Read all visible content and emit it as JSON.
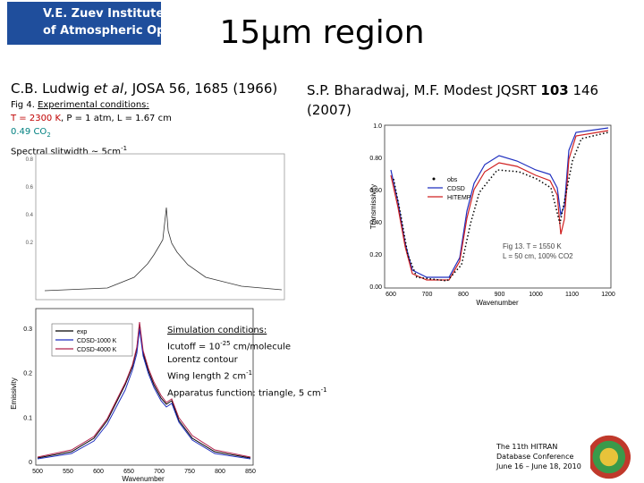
{
  "header": {
    "logo_lines": [
      "V.E. Zuev Institute",
      "of Atmospheric Optics"
    ],
    "title": "15μm region"
  },
  "left_reference": {
    "authors": "C.B. Ludwig ",
    "etal": "et al",
    "source": ", JOSA 56, 1685 (1966)",
    "fig": "Fig 4. ",
    "conditions_heading": "Experimental conditions:",
    "temperature": "T = 2300 K",
    "rest": ", P = 1 atm, L = 1.67 cm",
    "mixture": "0.49 CO",
    "mixture_sub": "2",
    "slit": "Spectral slitwidth ~ 5cm",
    "slit_sup": "-1"
  },
  "right_reference": {
    "authors": "S.P. Bharadwaj, M.F. Modest JQSRT ",
    "volume": "103",
    "pages": " 146",
    "year": "(2007)"
  },
  "simulation": {
    "heading": "Simulation conditions:",
    "cutoff": "Icutoff = 10",
    "cutoff_sup": "-25",
    "cutoff_unit": " cm/molecule",
    "contour": "Lorentz contour",
    "wing": "Wing length 2 cm",
    "wing_sup": "-1",
    "apparatus": "Apparatus function: triangle, 5 cm",
    "apparatus_sup": "-1"
  },
  "ludwig_plot": {
    "yticks": [
      "0.8",
      "0.6",
      "0.4",
      "0.2"
    ]
  },
  "transmissivity_plot": {
    "ylabel": "Transmissivity",
    "xlabel": "Wavenumber",
    "yticks": [
      "0.00",
      "0.20",
      "0.40",
      "0.60",
      "0.80",
      "1.0"
    ],
    "xticks": [
      "600",
      "700",
      "800",
      "900",
      "1000",
      "1100",
      "1200"
    ],
    "legend": [
      "obs",
      "CDSD",
      "HITEMP"
    ],
    "note_lines": [
      "Fig 13. T = 1550 K",
      "L = 50 cm, 100% CO2"
    ]
  },
  "emissivity_plot": {
    "ylabel": "Emissivity",
    "xlabel": "Wavenumber",
    "yticks": [
      "0.3",
      "0.2",
      "0.1",
      "0"
    ],
    "xticks": [
      "500",
      "550",
      "600",
      "650",
      "700",
      "750",
      "800",
      "850"
    ],
    "legend": [
      "exp",
      "CDSD-1000 K",
      "CDSD-4000 K"
    ]
  },
  "footer": {
    "lines": [
      "The 11th HITRAN",
      "Database Conference",
      "June 16 – June 18, 2010"
    ]
  }
}
